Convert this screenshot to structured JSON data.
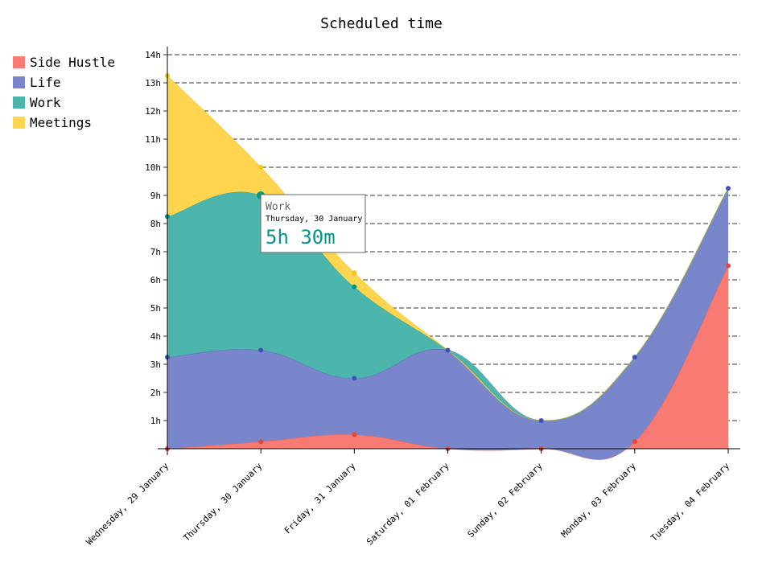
{
  "chart_data": {
    "type": "area",
    "stacked": true,
    "interpolation": "smooth",
    "title": "Scheduled time",
    "y_unit": "hours",
    "ylim": [
      0,
      14
    ],
    "y_ticks": [
      "1h",
      "2h",
      "3h",
      "4h",
      "5h",
      "6h",
      "7h",
      "8h",
      "9h",
      "10h",
      "11h",
      "12h",
      "13h",
      "14h"
    ],
    "grid": "horizontal dashed",
    "legend_position": "left",
    "categories": [
      "Wednesday, 29 January",
      "Thursday, 30 January",
      "Friday, 31 January",
      "Saturday, 01 February",
      "Sunday, 02 February",
      "Monday, 03 February",
      "Tuesday, 04 February"
    ],
    "series": [
      {
        "name": "Side Hustle",
        "color": "#f77b72",
        "stroke": "#e8463b",
        "values": [
          0,
          0.25,
          0.5,
          0,
          0,
          0.25,
          6.5
        ]
      },
      {
        "name": "Life",
        "color": "#7986cb",
        "stroke": "#3f51b5",
        "values": [
          3.25,
          3.25,
          2.0,
          3.5,
          1.0,
          3.0,
          2.75
        ]
      },
      {
        "name": "Work",
        "color": "#4db6ac",
        "stroke": "#009688",
        "values": [
          5.0,
          5.5,
          3.25,
          0,
          0,
          0,
          0
        ]
      },
      {
        "name": "Meetings",
        "color": "#ffd54f",
        "stroke": "#f0c419",
        "values": [
          5.0,
          1.0,
          0.5,
          0,
          0,
          0,
          0
        ]
      }
    ],
    "tooltip": {
      "series": "Work",
      "x": "Thursday, 30 January",
      "value": "5h 30m",
      "color": "#009688"
    }
  }
}
